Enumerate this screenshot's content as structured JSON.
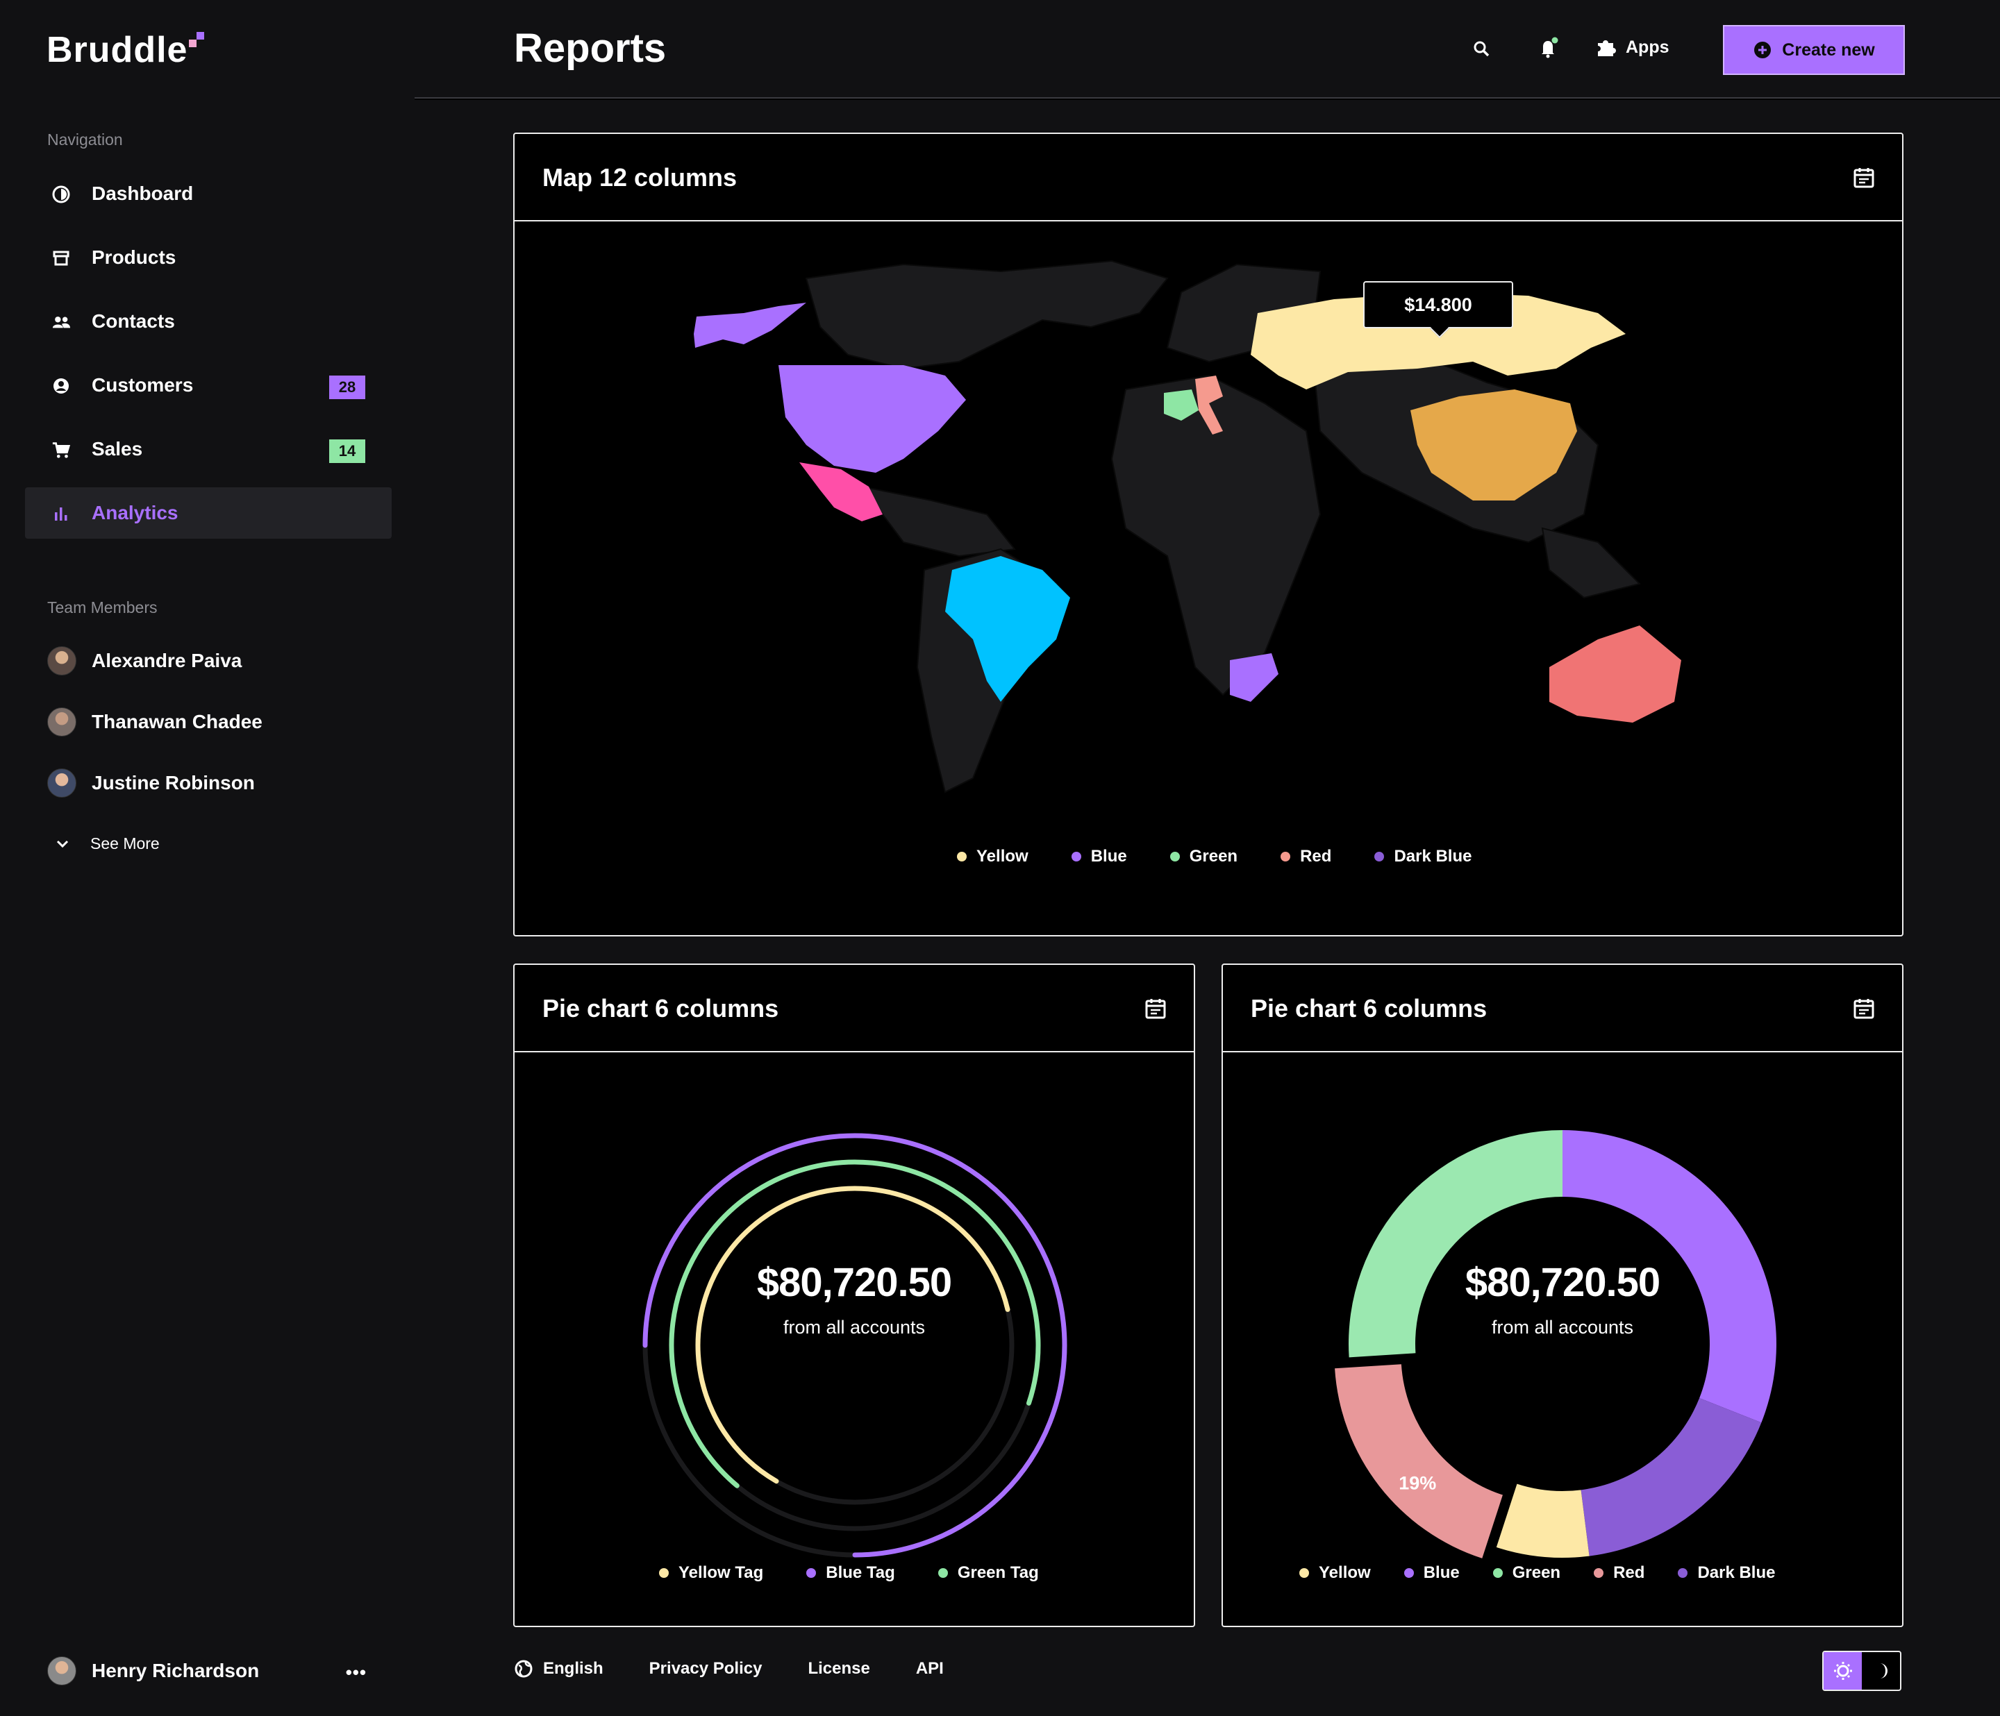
{
  "app": {
    "name": "Bruddle"
  },
  "sidebar": {
    "nav_label": "Navigation",
    "items": [
      {
        "label": "Dashboard",
        "icon": "dashboard-icon"
      },
      {
        "label": "Products",
        "icon": "store-icon"
      },
      {
        "label": "Contacts",
        "icon": "contacts-icon"
      },
      {
        "label": "Customers",
        "icon": "customer-icon",
        "badge": "28",
        "badge_color": "#a970ff"
      },
      {
        "label": "Sales",
        "icon": "cart-icon",
        "badge": "14",
        "badge_color": "#8ee6a4"
      },
      {
        "label": "Analytics",
        "icon": "bar-chart-icon",
        "active": true
      }
    ],
    "team_label": "Team Members",
    "members": [
      "Alexandre Paiva",
      "Thanawan Chadee",
      "Justine Robinson"
    ],
    "see_more": "See More",
    "profile_name": "Henry Richardson"
  },
  "header": {
    "title": "Reports",
    "apps_label": "Apps",
    "create_label": "Create new"
  },
  "map_card": {
    "title": "Map 12 columns",
    "tooltip": "$14.800",
    "legend": [
      {
        "label": "Yellow",
        "color": "#fde8a6"
      },
      {
        "label": "Blue",
        "color": "#a970ff"
      },
      {
        "label": "Green",
        "color": "#8ee6a4"
      },
      {
        "label": "Red",
        "color": "#f59a8e"
      },
      {
        "label": "Dark Blue",
        "color": "#8a5dd6"
      }
    ]
  },
  "pie1": {
    "title": "Pie chart 6 columns",
    "amount": "$80,720.50",
    "sub": "from all accounts",
    "legend": [
      {
        "label": "Yellow Tag",
        "color": "#fde8a6"
      },
      {
        "label": "Blue Tag",
        "color": "#a970ff"
      },
      {
        "label": "Green Tag",
        "color": "#8ee6a4"
      }
    ]
  },
  "pie2": {
    "title": "Pie chart 6 columns",
    "amount": "$80,720.50",
    "sub": "from all accounts",
    "slice_label": "19%",
    "legend": [
      {
        "label": "Yellow",
        "color": "#fde8a6"
      },
      {
        "label": "Blue",
        "color": "#a970ff"
      },
      {
        "label": "Green",
        "color": "#8ee6a4"
      },
      {
        "label": "Red",
        "color": "#e8989a"
      },
      {
        "label": "Dark Blue",
        "color": "#8a5dd6"
      }
    ]
  },
  "footer": {
    "language": "English",
    "privacy": "Privacy Policy",
    "license": "License",
    "api": "API"
  },
  "chart_data": [
    {
      "type": "pie",
      "title": "Pie chart 6 columns",
      "center_label": "$80,720.50",
      "series": [
        {
          "name": "Blue Tag",
          "values": [
            0.75
          ]
        },
        {
          "name": "Green Tag",
          "values": [
            0.69
          ]
        },
        {
          "name": "Yellow Tag",
          "values": [
            0.63
          ]
        }
      ]
    },
    {
      "type": "pie",
      "title": "Pie chart 6 columns",
      "center_label": "$80,720.50",
      "categories": [
        "Blue",
        "Dark Blue",
        "Yellow",
        "Red",
        "Green"
      ],
      "values": [
        31,
        17,
        7,
        19,
        26
      ],
      "colors": [
        "#a970ff",
        "#8a5dd6",
        "#fde8a6",
        "#e8989a",
        "#9be8b0"
      ]
    }
  ]
}
